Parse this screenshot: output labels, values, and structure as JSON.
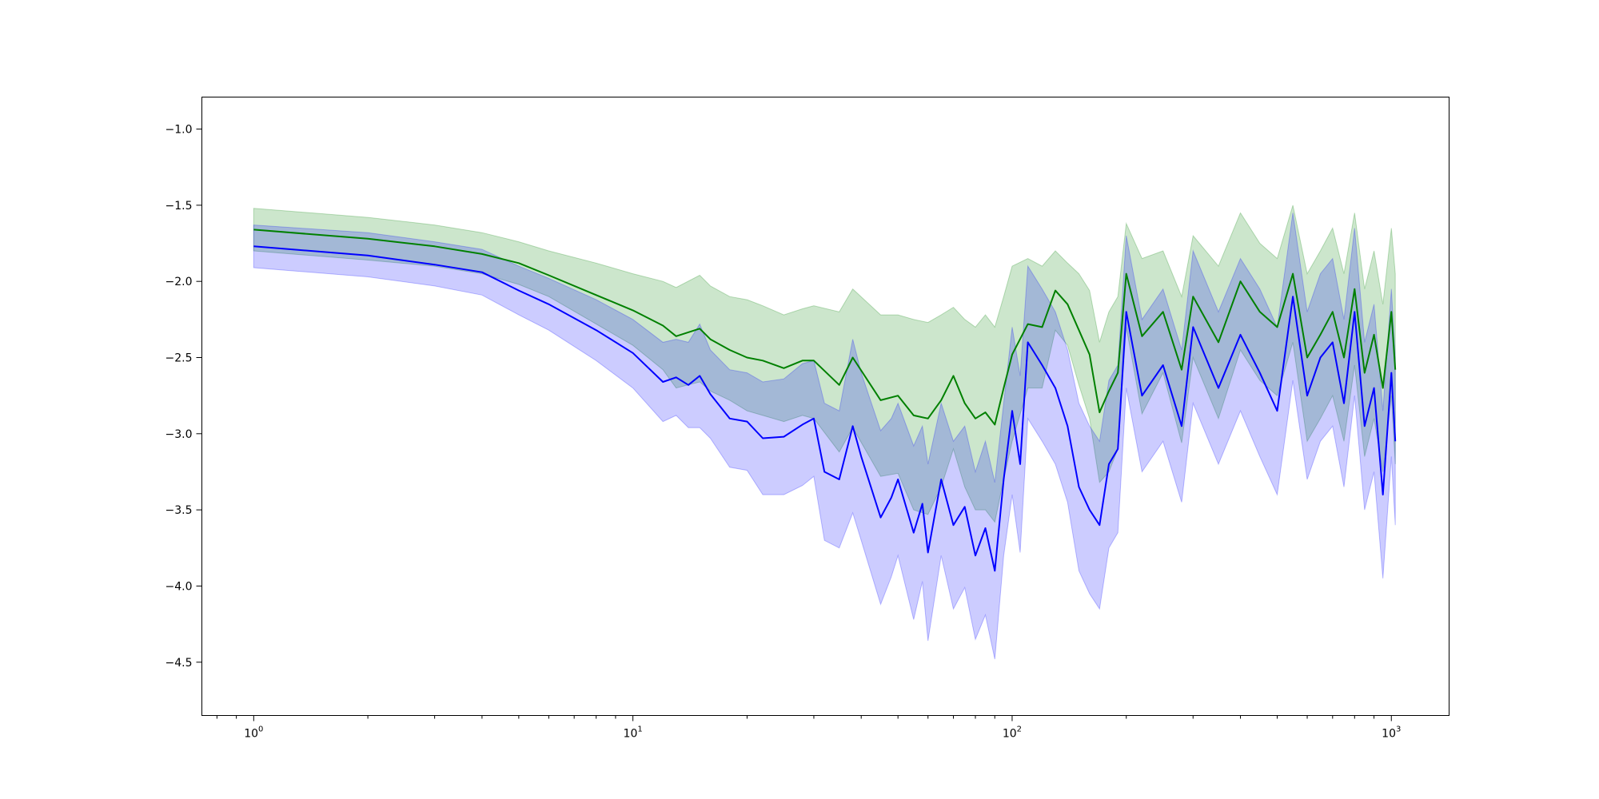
{
  "chart_data": {
    "type": "line",
    "title": "",
    "xlabel": "",
    "ylabel": "",
    "xscale": "log",
    "xlim": [
      0.73,
      1420
    ],
    "ylim": [
      -4.85,
      -0.79
    ],
    "grid": false,
    "legend": "none",
    "x_ticks": [
      {
        "base": "10",
        "exp": "0",
        "value": 1
      },
      {
        "base": "10",
        "exp": "1",
        "value": 10
      },
      {
        "base": "10",
        "exp": "2",
        "value": 100
      },
      {
        "base": "10",
        "exp": "3",
        "value": 1000
      }
    ],
    "y_ticks": [
      {
        "label": "−1.0",
        "value": -1.0
      },
      {
        "label": "−1.5",
        "value": -1.5
      },
      {
        "label": "−2.0",
        "value": -2.0
      },
      {
        "label": "−2.5",
        "value": -2.5
      },
      {
        "label": "−3.0",
        "value": -3.0
      },
      {
        "label": "−3.5",
        "value": -3.5
      },
      {
        "label": "−4.0",
        "value": -4.0
      },
      {
        "label": "−4.5",
        "value": -4.5
      }
    ],
    "series": [
      {
        "color": "#008000",
        "band_color": "#008000",
        "band_opacity": 0.2,
        "x": [
          1,
          2,
          3,
          4,
          5,
          6,
          8,
          10,
          12,
          13,
          15,
          16,
          18,
          20,
          22,
          25,
          28,
          30,
          35,
          38,
          45,
          50,
          55,
          60,
          65,
          70,
          75,
          80,
          85,
          90,
          95,
          100,
          110,
          120,
          130,
          140,
          150,
          160,
          170,
          180,
          190,
          200,
          220,
          250,
          280,
          300,
          350,
          400,
          450,
          500,
          550,
          600,
          650,
          700,
          750,
          800,
          850,
          900,
          950,
          1000,
          1024
        ],
        "y": [
          -1.66,
          -1.72,
          -1.77,
          -1.82,
          -1.88,
          -1.96,
          -2.09,
          -2.19,
          -2.29,
          -2.36,
          -2.31,
          -2.38,
          -2.45,
          -2.5,
          -2.52,
          -2.57,
          -2.52,
          -2.52,
          -2.68,
          -2.5,
          -2.78,
          -2.75,
          -2.88,
          -2.9,
          -2.78,
          -2.62,
          -2.8,
          -2.9,
          -2.86,
          -2.94,
          -2.7,
          -2.48,
          -2.28,
          -2.3,
          -2.06,
          -2.15,
          -2.32,
          -2.48,
          -2.86,
          -2.72,
          -2.6,
          -1.95,
          -2.36,
          -2.2,
          -2.58,
          -2.1,
          -2.4,
          -2.0,
          -2.2,
          -2.3,
          -1.95,
          -2.5,
          -2.35,
          -2.2,
          -2.5,
          -2.05,
          -2.6,
          -2.35,
          -2.7,
          -2.2,
          -2.58
        ],
        "upper": [
          -1.52,
          -1.58,
          -1.63,
          -1.68,
          -1.74,
          -1.8,
          -1.88,
          -1.95,
          -2.0,
          -2.04,
          -1.96,
          -2.03,
          -2.1,
          -2.12,
          -2.16,
          -2.22,
          -2.18,
          -2.16,
          -2.2,
          -2.05,
          -2.22,
          -2.22,
          -2.25,
          -2.27,
          -2.22,
          -2.17,
          -2.25,
          -2.3,
          -2.22,
          -2.3,
          -2.1,
          -1.9,
          -1.85,
          -1.9,
          -1.8,
          -1.88,
          -1.95,
          -2.06,
          -2.4,
          -2.2,
          -2.1,
          -1.62,
          -1.85,
          -1.8,
          -2.1,
          -1.7,
          -1.9,
          -1.55,
          -1.75,
          -1.85,
          -1.5,
          -1.95,
          -1.8,
          -1.65,
          -1.95,
          -1.55,
          -2.05,
          -1.8,
          -2.15,
          -1.65,
          -1.95
        ],
        "lower": [
          -1.8,
          -1.86,
          -1.9,
          -1.95,
          -2.02,
          -2.1,
          -2.28,
          -2.42,
          -2.58,
          -2.7,
          -2.66,
          -2.72,
          -2.78,
          -2.85,
          -2.88,
          -2.92,
          -2.88,
          -2.9,
          -3.12,
          -2.96,
          -3.28,
          -3.26,
          -3.5,
          -3.53,
          -3.35,
          -3.1,
          -3.35,
          -3.5,
          -3.5,
          -3.58,
          -3.3,
          -3.05,
          -2.7,
          -2.7,
          -2.32,
          -2.42,
          -2.68,
          -2.9,
          -3.32,
          -3.25,
          -3.1,
          -2.3,
          -2.87,
          -2.6,
          -3.06,
          -2.5,
          -2.9,
          -2.45,
          -2.65,
          -2.75,
          -2.4,
          -3.05,
          -2.9,
          -2.75,
          -3.05,
          -2.55,
          -3.15,
          -2.9,
          -3.25,
          -2.75,
          -3.2
        ]
      },
      {
        "color": "#0000ff",
        "band_color": "#0000ff",
        "band_opacity": 0.2,
        "x": [
          1,
          2,
          3,
          4,
          5,
          6,
          8,
          10,
          12,
          13,
          14,
          15,
          16,
          18,
          20,
          22,
          25,
          28,
          30,
          32,
          35,
          38,
          40,
          45,
          48,
          50,
          55,
          58,
          60,
          65,
          70,
          75,
          80,
          85,
          90,
          95,
          100,
          105,
          110,
          120,
          130,
          140,
          150,
          160,
          170,
          180,
          190,
          200,
          220,
          250,
          280,
          300,
          350,
          400,
          450,
          500,
          550,
          600,
          650,
          700,
          750,
          800,
          850,
          900,
          950,
          1000,
          1024
        ],
        "y": [
          -1.77,
          -1.83,
          -1.89,
          -1.94,
          -2.06,
          -2.15,
          -2.32,
          -2.47,
          -2.66,
          -2.63,
          -2.68,
          -2.62,
          -2.74,
          -2.9,
          -2.92,
          -3.03,
          -3.02,
          -2.94,
          -2.9,
          -3.25,
          -3.3,
          -2.95,
          -3.15,
          -3.55,
          -3.42,
          -3.3,
          -3.65,
          -3.46,
          -3.78,
          -3.3,
          -3.6,
          -3.48,
          -3.8,
          -3.62,
          -3.9,
          -3.3,
          -2.85,
          -3.2,
          -2.4,
          -2.55,
          -2.7,
          -2.95,
          -3.35,
          -3.5,
          -3.6,
          -3.2,
          -3.1,
          -2.2,
          -2.75,
          -2.55,
          -2.95,
          -2.3,
          -2.7,
          -2.35,
          -2.6,
          -2.85,
          -2.1,
          -2.75,
          -2.5,
          -2.4,
          -2.8,
          -2.2,
          -2.95,
          -2.7,
          -3.4,
          -2.6,
          -3.05
        ],
        "upper": [
          -1.63,
          -1.68,
          -1.74,
          -1.79,
          -1.9,
          -1.98,
          -2.12,
          -2.25,
          -2.4,
          -2.38,
          -2.4,
          -2.28,
          -2.45,
          -2.58,
          -2.6,
          -2.66,
          -2.64,
          -2.54,
          -2.52,
          -2.8,
          -2.85,
          -2.38,
          -2.6,
          -2.98,
          -2.9,
          -2.8,
          -3.08,
          -2.95,
          -3.2,
          -2.8,
          -3.05,
          -2.95,
          -3.25,
          -3.05,
          -3.32,
          -2.8,
          -2.3,
          -2.62,
          -1.9,
          -2.05,
          -2.2,
          -2.45,
          -2.8,
          -2.95,
          -3.05,
          -2.65,
          -2.55,
          -1.7,
          -2.25,
          -2.05,
          -2.45,
          -1.8,
          -2.2,
          -1.85,
          -2.05,
          -2.3,
          -1.55,
          -2.2,
          -1.95,
          -1.85,
          -2.25,
          -1.65,
          -2.4,
          -2.15,
          -2.85,
          -2.05,
          -2.5
        ],
        "lower": [
          -1.91,
          -1.97,
          -2.03,
          -2.09,
          -2.22,
          -2.32,
          -2.52,
          -2.7,
          -2.92,
          -2.88,
          -2.96,
          -2.96,
          -3.03,
          -3.22,
          -3.24,
          -3.4,
          -3.4,
          -3.34,
          -3.28,
          -3.7,
          -3.75,
          -3.52,
          -3.7,
          -4.12,
          -3.94,
          -3.8,
          -4.22,
          -3.97,
          -4.36,
          -3.8,
          -4.15,
          -4.01,
          -4.35,
          -4.19,
          -4.48,
          -3.8,
          -3.4,
          -3.78,
          -2.9,
          -3.05,
          -3.2,
          -3.45,
          -3.9,
          -4.05,
          -4.15,
          -3.75,
          -3.65,
          -2.7,
          -3.25,
          -3.05,
          -3.45,
          -2.8,
          -3.2,
          -2.85,
          -3.15,
          -3.4,
          -2.65,
          -3.3,
          -3.05,
          -2.95,
          -3.35,
          -2.75,
          -3.5,
          -3.25,
          -3.95,
          -3.15,
          -3.6
        ]
      }
    ]
  }
}
